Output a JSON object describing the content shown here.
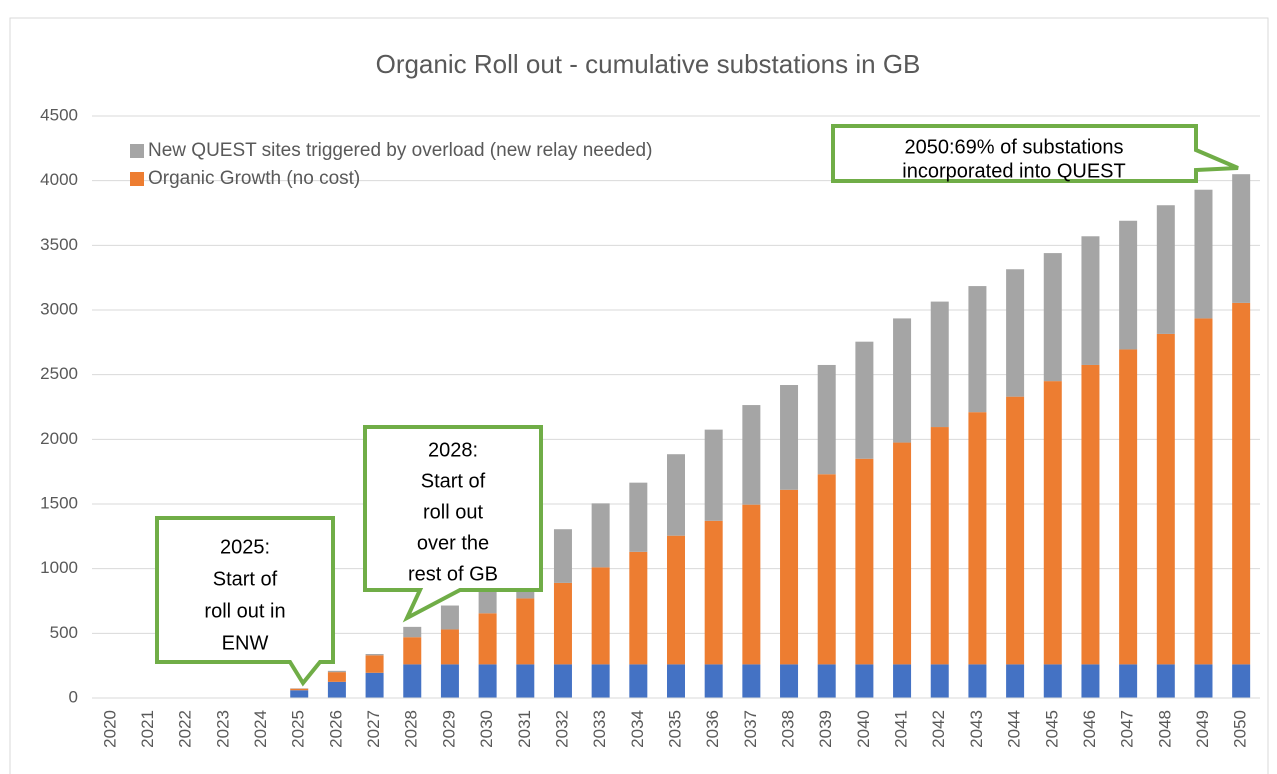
{
  "chart_data": {
    "type": "bar",
    "stacked": true,
    "title": "Organic Roll out - cumulative substations in GB",
    "categories": [
      "2020",
      "2021",
      "2022",
      "2023",
      "2024",
      "2025",
      "2026",
      "2027",
      "2028",
      "2029",
      "2030",
      "2031",
      "2032",
      "2033",
      "2034",
      "2035",
      "2036",
      "2037",
      "2038",
      "2039",
      "2040",
      "2041",
      "2042",
      "2043",
      "2044",
      "2045",
      "2046",
      "2047",
      "2048",
      "2049",
      "2050"
    ],
    "series": [
      {
        "color": "#4472c4",
        "values": [
          0,
          0,
          0,
          0,
          0,
          60,
          125,
          195,
          260,
          260,
          260,
          260,
          260,
          260,
          260,
          260,
          260,
          260,
          260,
          260,
          260,
          260,
          260,
          260,
          260,
          260,
          260,
          260,
          260,
          260,
          260
        ]
      },
      {
        "name": "Organic Growth (no cost)",
        "color": "#ed7d31",
        "values": [
          0,
          0,
          0,
          0,
          0,
          12,
          75,
          135,
          210,
          270,
          395,
          510,
          630,
          750,
          870,
          995,
          1110,
          1235,
          1350,
          1470,
          1590,
          1715,
          1835,
          1950,
          2070,
          2190,
          2315,
          2435,
          2555,
          2675,
          2795
        ]
      },
      {
        "name": "New QUEST sites triggered by overload (new relay needed)",
        "color": "#a5a5a5",
        "values": [
          0,
          0,
          0,
          0,
          0,
          3,
          10,
          10,
          80,
          185,
          215,
          320,
          415,
          495,
          535,
          630,
          705,
          770,
          810,
          845,
          905,
          960,
          970,
          975,
          985,
          990,
          995,
          995,
          995,
          995,
          995
        ]
      }
    ],
    "ylim": [
      0,
      4500
    ],
    "yticks": [
      0,
      500,
      1000,
      1500,
      2000,
      2500,
      3000,
      3500,
      4000,
      4500
    ],
    "grid": true,
    "legend": "top-left",
    "annotations": [
      {
        "lines": [
          "2025:",
          "Start of",
          "roll out in",
          "ENW"
        ]
      },
      {
        "lines": [
          "2028:",
          "Start of",
          "roll out",
          "over the",
          "rest of GB"
        ]
      },
      {
        "lines": [
          "2050:69% of substations",
          "incorporated into QUEST"
        ]
      }
    ]
  }
}
